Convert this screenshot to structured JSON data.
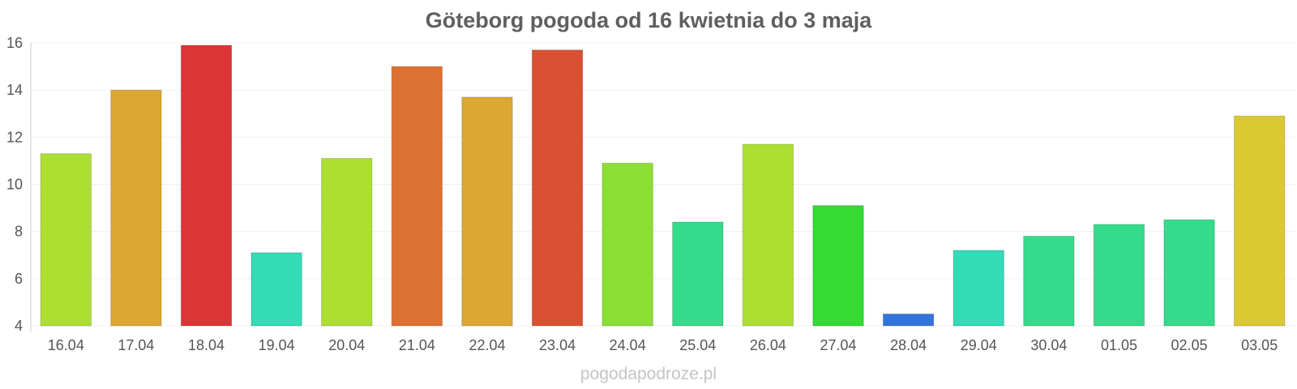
{
  "chart_data": {
    "type": "bar",
    "title": "Göteborg pogoda od 16 kwietnia do 3 maja",
    "xlabel": "",
    "ylabel": "",
    "ylim": [
      4,
      16
    ],
    "yticks": [
      "4",
      "6",
      "8",
      "10",
      "12",
      "14",
      "16"
    ],
    "grid": true,
    "categories": [
      "16.04",
      "17.04",
      "18.04",
      "19.04",
      "20.04",
      "21.04",
      "22.04",
      "23.04",
      "24.04",
      "25.04",
      "26.04",
      "27.04",
      "28.04",
      "29.04",
      "30.04",
      "01.05",
      "02.05",
      "03.05"
    ],
    "values": [
      11.3,
      14.0,
      15.9,
      7.1,
      11.1,
      15.0,
      13.7,
      15.7,
      10.9,
      8.4,
      11.7,
      9.1,
      4.5,
      7.2,
      7.8,
      8.3,
      8.5,
      12.9
    ],
    "colors": [
      "#addf33",
      "#dca833",
      "#db3535",
      "#33dbb6",
      "#addf33",
      "#dd7033",
      "#dca833",
      "#db5033",
      "#8bdf33",
      "#33db8b",
      "#addf33",
      "#33db33",
      "#3374db",
      "#33dbb6",
      "#33db8b",
      "#33db8b",
      "#33db8b",
      "#dbc933"
    ]
  },
  "watermark": "pogodapodroze.pl"
}
